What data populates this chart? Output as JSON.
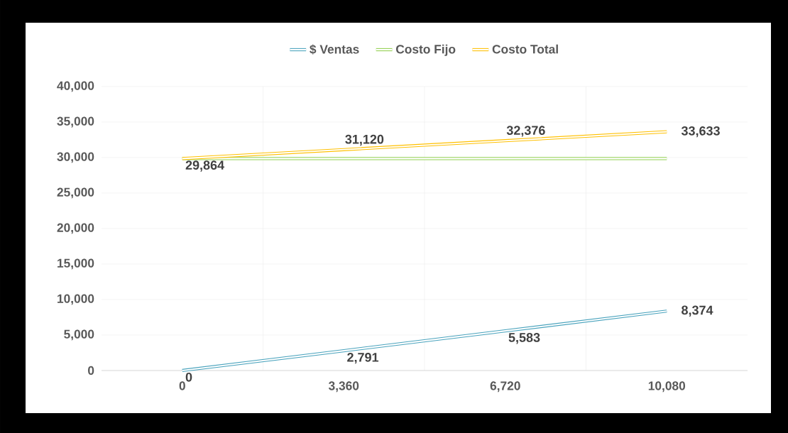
{
  "chart_data": {
    "type": "line",
    "categories": [
      "0",
      "3,360",
      "6,720",
      "10,080"
    ],
    "ylim": [
      0,
      40000
    ],
    "yticks": [
      {
        "value": 0,
        "label": "0"
      },
      {
        "value": 5000,
        "label": "5,000"
      },
      {
        "value": 10000,
        "label": "10,000"
      },
      {
        "value": 15000,
        "label": "15,000"
      },
      {
        "value": 20000,
        "label": "20,000"
      },
      {
        "value": 25000,
        "label": "25,000"
      },
      {
        "value": 30000,
        "label": "30,000"
      },
      {
        "value": 35000,
        "label": "35,000"
      },
      {
        "value": 40000,
        "label": "40,000"
      }
    ],
    "grid": true,
    "legend": "top",
    "series": [
      {
        "name": "$ Ventas",
        "color": "#4aa3bd",
        "values": [
          0,
          2791,
          5583,
          8374
        ],
        "value_labels": [
          "0",
          "2,791",
          "5,583",
          "8,374"
        ]
      },
      {
        "name": "Costo Fijo",
        "color": "#92d050",
        "values": [
          29864,
          29864,
          29864,
          29864
        ]
      },
      {
        "name": "Costo Total",
        "color": "#ffc000",
        "values": [
          29864,
          31120,
          32376,
          33633
        ],
        "value_labels": [
          "29,864",
          "31,120",
          "32,376",
          "33,633"
        ]
      }
    ]
  }
}
